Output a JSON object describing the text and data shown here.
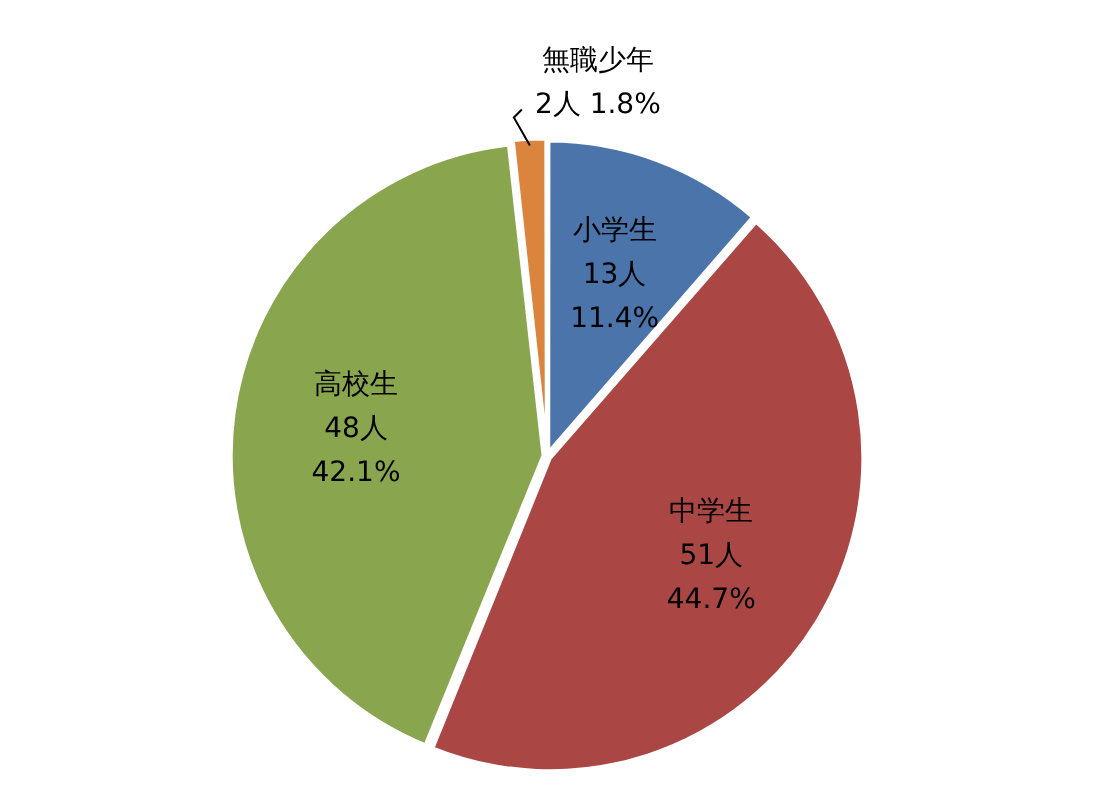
{
  "chart_data": {
    "type": "pie",
    "categories": [
      "小学生",
      "中学生",
      "高校生",
      "無職少年"
    ],
    "values": [
      13,
      51,
      48,
      2
    ],
    "colors": [
      "#4a74aa",
      "#aa4644",
      "#89a54e",
      "#db843d"
    ],
    "value_labels": [
      "13人\n11.4%",
      "51人\n44.7%",
      "48人\n42.1%",
      "2人 1.8%"
    ],
    "legend": false
  }
}
